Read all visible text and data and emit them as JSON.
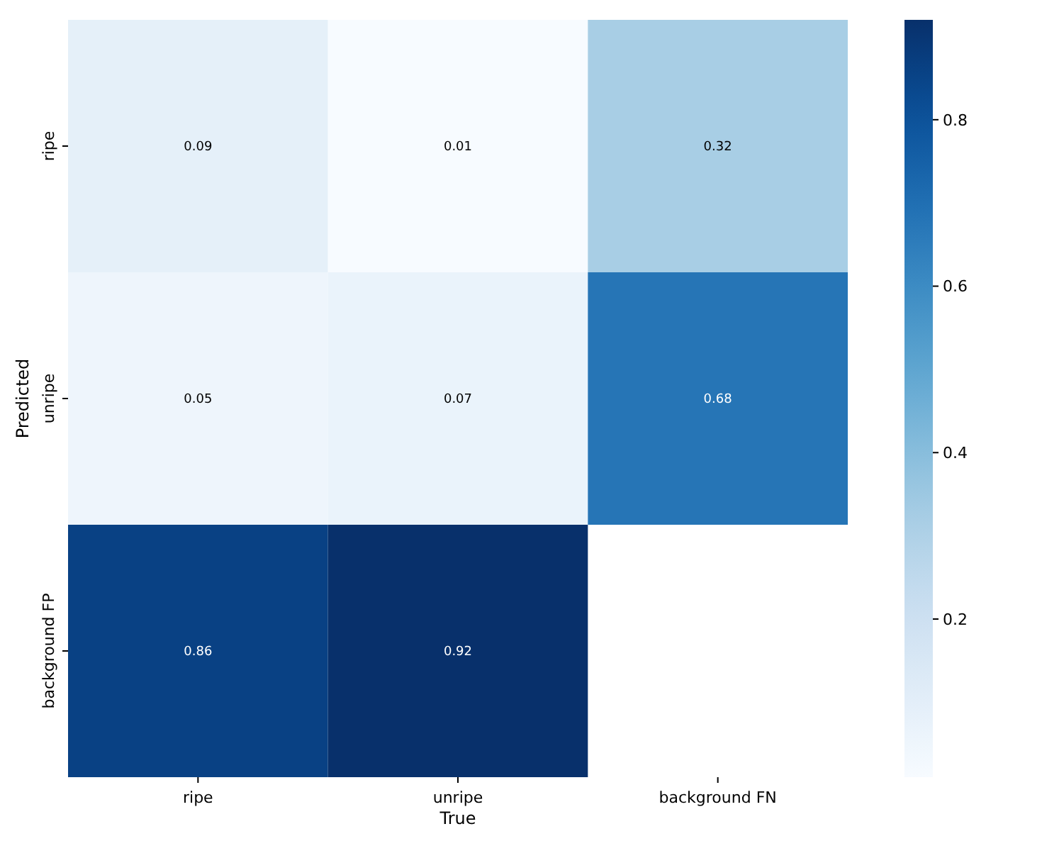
{
  "chart_data": {
    "type": "heatmap",
    "xlabel": "True",
    "ylabel": "Predicted",
    "categories": [
      "ripe",
      "unripe",
      "background FN"
    ],
    "y_categories": [
      "ripe",
      "unripe",
      "background FP"
    ],
    "cells": [
      [
        0.09,
        0.01,
        0.32
      ],
      [
        0.05,
        0.07,
        0.68
      ],
      [
        0.86,
        0.92,
        null
      ]
    ],
    "clim": [
      0.01,
      0.92
    ],
    "cticks": [
      0.2,
      0.4,
      0.6,
      0.8
    ],
    "data_labels": true
  }
}
